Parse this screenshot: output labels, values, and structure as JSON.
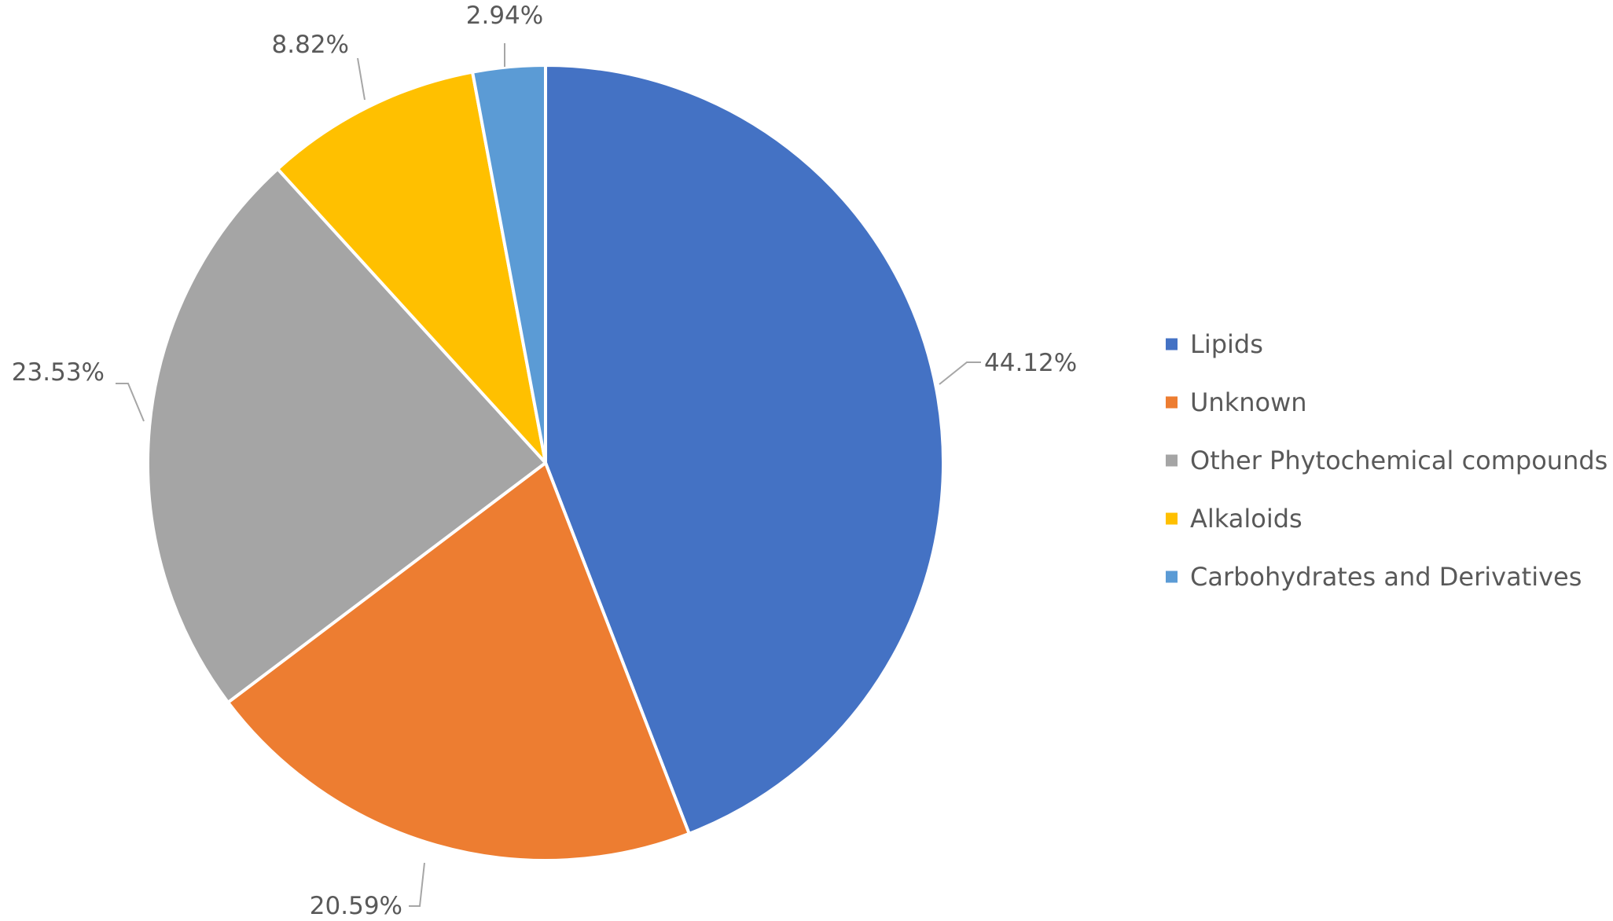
{
  "chart_data": {
    "type": "pie",
    "title": "",
    "categories": [
      "Lipids",
      "Unknown",
      "Other Phytochemical compounds",
      "Alkaloids",
      "Carbohydrates and Derivatives"
    ],
    "values": [
      44.12,
      20.59,
      23.53,
      8.82,
      2.94
    ],
    "data_labels": [
      "44.12%",
      "20.59%",
      "23.53%",
      "8.82%",
      "2.94%"
    ],
    "colors": [
      "#4472c4",
      "#ed7d31",
      "#a5a5a5",
      "#ffc000",
      "#5b9bd5"
    ],
    "start_angle": "12 o'clock",
    "direction": "clockwise",
    "legend_position": "right",
    "legend": [
      {
        "label": "Lipids",
        "color": "#4472c4"
      },
      {
        "label": "Unknown",
        "color": "#ed7d31"
      },
      {
        "label": "Other Phytochemical compounds",
        "color": "#a5a5a5"
      },
      {
        "label": "Alkaloids",
        "color": "#ffc000"
      },
      {
        "label": "Carbohydrates and Derivatives",
        "color": "#5b9bd5"
      }
    ]
  }
}
